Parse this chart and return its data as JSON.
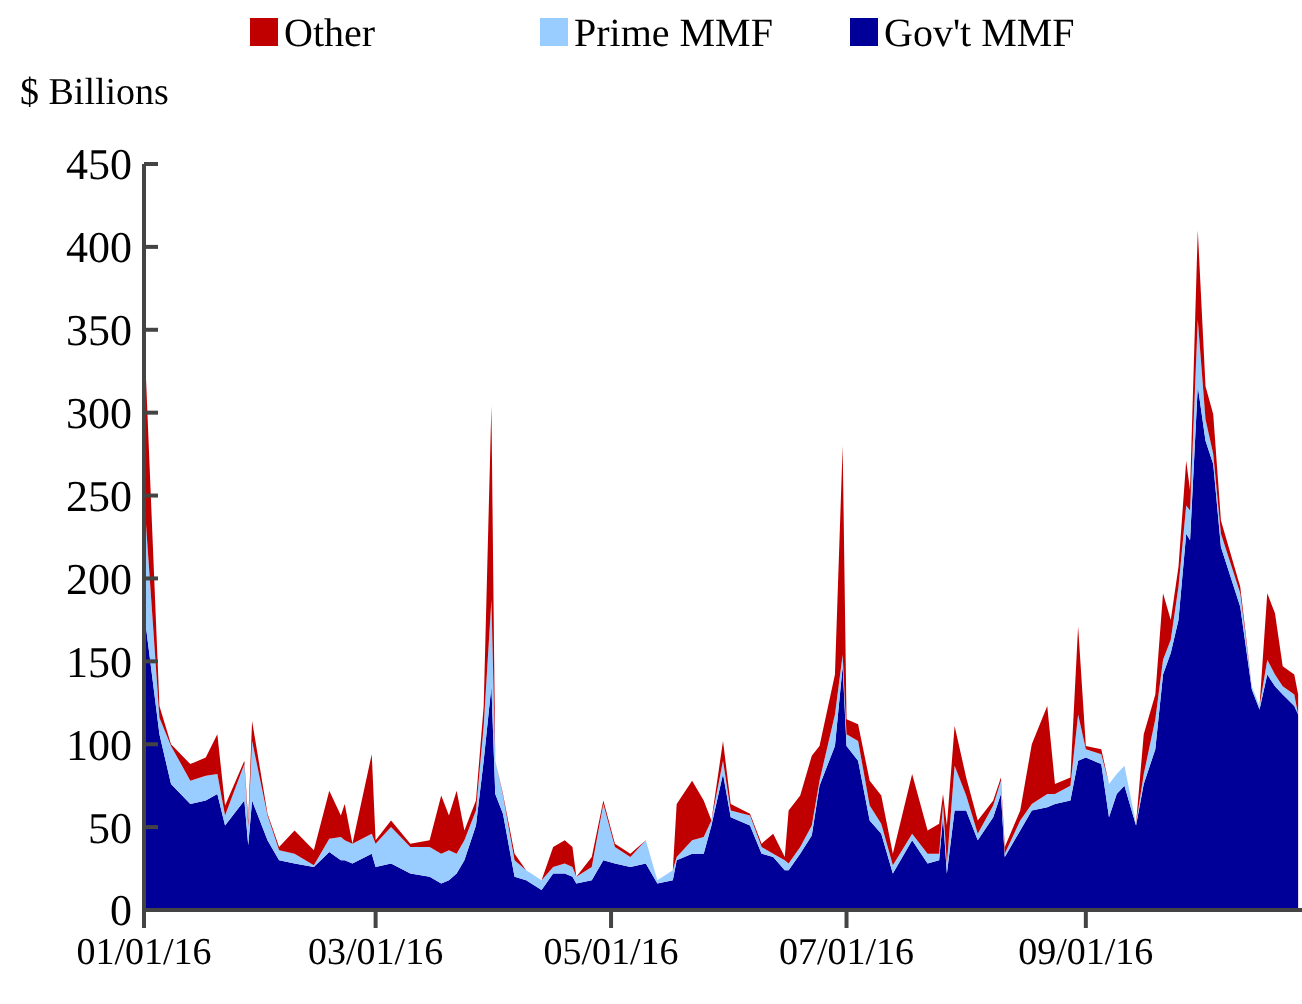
{
  "chart_data": {
    "type": "area",
    "stacked": true,
    "ylabel": "$ Billions",
    "legend": "top",
    "grid": false,
    "x": [
      "2016-01-01",
      "2016-01-05",
      "2016-01-08",
      "2016-01-13",
      "2016-01-17",
      "2016-01-20",
      "2016-01-22",
      "2016-01-27",
      "2016-01-28",
      "2016-01-29",
      "2016-02-02",
      "2016-02-05",
      "2016-02-09",
      "2016-02-14",
      "2016-02-18",
      "2016-02-21",
      "2016-02-22",
      "2016-02-24",
      "2016-02-29",
      "2016-03-01",
      "2016-03-05",
      "2016-03-10",
      "2016-03-15",
      "2016-03-18",
      "2016-03-20",
      "2016-03-22",
      "2016-03-24",
      "2016-03-27",
      "2016-03-29",
      "2016-03-31",
      "2016-04-01",
      "2016-04-03",
      "2016-04-06",
      "2016-04-09",
      "2016-04-13",
      "2016-04-16",
      "2016-04-19",
      "2016-04-21",
      "2016-04-22",
      "2016-04-26",
      "2016-04-29",
      "2016-05-02",
      "2016-05-06",
      "2016-05-10",
      "2016-05-13",
      "2016-05-17",
      "2016-05-18",
      "2016-05-22",
      "2016-05-25",
      "2016-05-27",
      "2016-05-30",
      "2016-06-01",
      "2016-06-06",
      "2016-06-09",
      "2016-06-12",
      "2016-06-15",
      "2016-06-16",
      "2016-06-19",
      "2016-06-22",
      "2016-06-24",
      "2016-06-28",
      "2016-06-30",
      "2016-07-01",
      "2016-07-04",
      "2016-07-07",
      "2016-07-10",
      "2016-07-13",
      "2016-07-18",
      "2016-07-22",
      "2016-07-25",
      "2016-07-26",
      "2016-07-27",
      "2016-07-29",
      "2016-08-01",
      "2016-08-04",
      "2016-08-08",
      "2016-08-10",
      "2016-08-11",
      "2016-08-15",
      "2016-08-18",
      "2016-08-22",
      "2016-08-24",
      "2016-08-28",
      "2016-08-30",
      "2016-09-01",
      "2016-09-05",
      "2016-09-07",
      "2016-09-09",
      "2016-09-11",
      "2016-09-14",
      "2016-09-16",
      "2016-09-19",
      "2016-09-21",
      "2016-09-23",
      "2016-09-25",
      "2016-09-27",
      "2016-09-28",
      "2016-09-30",
      "2016-10-02",
      "2016-10-04",
      "2016-10-06",
      "2016-10-11",
      "2016-10-14",
      "2016-10-16",
      "2016-10-18",
      "2016-10-20",
      "2016-10-22",
      "2016-10-25",
      "2016-10-26"
    ],
    "series": [
      {
        "name": "Gov't MMF",
        "color": "#000099",
        "values": [
          180,
          106,
          76,
          64,
          66,
          70,
          51,
          66,
          39,
          66,
          42,
          30,
          28,
          26,
          35,
          30,
          30,
          28,
          34,
          26,
          28,
          22,
          20,
          16,
          18,
          22,
          30,
          51,
          90,
          135,
          70,
          58,
          20,
          18,
          12,
          22,
          22,
          20,
          16,
          18,
          30,
          28,
          26,
          28,
          16,
          18,
          30,
          34,
          34,
          51,
          82,
          56,
          51,
          34,
          32,
          24,
          24,
          34,
          45,
          75,
          99,
          147,
          99,
          90,
          54,
          46,
          22,
          42,
          28,
          30,
          56,
          22,
          60,
          60,
          42,
          56,
          70,
          32,
          48,
          60,
          62,
          64,
          66,
          90,
          92,
          88,
          56,
          70,
          75,
          51,
          76,
          97,
          142,
          155,
          175,
          227,
          223,
          316,
          283,
          269,
          219,
          183,
          133,
          121,
          142,
          135,
          130,
          123,
          118
        ]
      },
      {
        "name": "Prime MMF",
        "color": "#99ccff",
        "values": [
          70,
          10,
          23,
          14,
          15,
          12,
          6,
          22,
          11,
          36,
          15,
          6,
          6,
          1,
          8,
          14,
          12,
          12,
          12,
          14,
          22,
          16,
          18,
          18,
          18,
          12,
          12,
          9,
          21,
          52,
          20,
          11,
          10,
          6,
          6,
          4,
          6,
          6,
          4,
          8,
          34,
          10,
          6,
          14,
          2,
          6,
          2,
          8,
          10,
          3,
          8,
          4,
          6,
          4,
          2,
          6,
          4,
          4,
          6,
          3,
          19,
          7,
          7,
          12,
          9,
          6,
          5,
          4,
          6,
          4,
          8,
          6,
          27,
          9,
          4,
          7,
          8,
          2,
          6,
          4,
          8,
          6,
          9,
          28,
          5,
          6,
          20,
          12,
          12,
          1,
          6,
          18,
          9,
          8,
          20,
          17,
          18,
          40,
          13,
          6,
          8,
          8,
          2,
          2,
          9,
          7,
          5,
          7,
          0
        ]
      },
      {
        "name": "Other",
        "color": "#c00000",
        "values": [
          100,
          7,
          1,
          10,
          11,
          24,
          6,
          2,
          4,
          12,
          1,
          2,
          14,
          9,
          29,
          13,
          22,
          0,
          48,
          2,
          4,
          2,
          4,
          35,
          21,
          38,
          6,
          6,
          12,
          117,
          0,
          1,
          4,
          0,
          0,
          12,
          14,
          12,
          0,
          6,
          2,
          2,
          2,
          0,
          0,
          0,
          32,
          36,
          22,
          0,
          12,
          4,
          1,
          2,
          12,
          2,
          32,
          31,
          42,
          21,
          24,
          126,
          9,
          10,
          15,
          17,
          7,
          36,
          14,
          18,
          6,
          23,
          24,
          11,
          8,
          3,
          2,
          4,
          6,
          36,
          53,
          6,
          5,
          53,
          2,
          3,
          0,
          0,
          0,
          0,
          24,
          15,
          40,
          12,
          12,
          27,
          12,
          54,
          20,
          24,
          8,
          4,
          0,
          0,
          40,
          37,
          12,
          12,
          12
        ]
      }
    ],
    "xlim": [
      "2016-01-01",
      "2016-10-27"
    ],
    "xticks": [
      {
        "value": "2016-01-01",
        "label": "01/01/16"
      },
      {
        "value": "2016-03-01",
        "label": "03/01/16"
      },
      {
        "value": "2016-05-01",
        "label": "05/01/16"
      },
      {
        "value": "2016-07-01",
        "label": "07/01/16"
      },
      {
        "value": "2016-09-01",
        "label": "09/01/16"
      }
    ],
    "ylim": [
      0,
      450
    ],
    "yticks": [
      0,
      50,
      100,
      150,
      200,
      250,
      300,
      350,
      400,
      450
    ]
  }
}
